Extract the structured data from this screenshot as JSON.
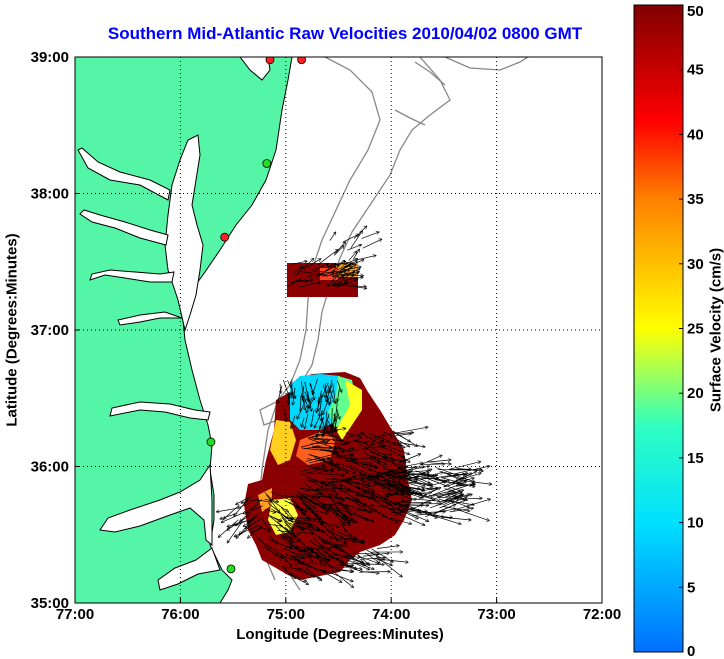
{
  "title": "Southern Mid-Atlantic Raw Velocities 2010/04/02 0800 GMT",
  "xlabel": "Longitude (Degrees:Minutes)",
  "ylabel": "Latitude (Degrees:Minutes)",
  "map": {
    "lon_range": [
      -77,
      -72
    ],
    "lat_range": [
      35,
      39
    ],
    "x_ticks": [
      {
        "lon": -77,
        "label": "77:00"
      },
      {
        "lon": -76,
        "label": "76:00"
      },
      {
        "lon": -75,
        "label": "75:00"
      },
      {
        "lon": -74,
        "label": "74:00"
      },
      {
        "lon": -73,
        "label": "73:00"
      },
      {
        "lon": -72,
        "label": "72:00"
      }
    ],
    "y_ticks": [
      {
        "lat": 35,
        "label": "35:00"
      },
      {
        "lat": 36,
        "label": "36:00"
      },
      {
        "lat": 37,
        "label": "37:00"
      },
      {
        "lat": 38,
        "label": "38:00"
      },
      {
        "lat": 39,
        "label": "39:00"
      }
    ],
    "grid": "dotted",
    "land_color": "#55f5a8",
    "stations": [
      {
        "lon": -75.15,
        "lat": 38.98,
        "color": "#ff2020"
      },
      {
        "lon": -74.85,
        "lat": 38.98,
        "color": "#ff2020"
      },
      {
        "lon": -75.18,
        "lat": 38.22,
        "color": "#22dd22"
      },
      {
        "lon": -75.58,
        "lat": 37.68,
        "color": "#ff2020"
      },
      {
        "lon": -75.71,
        "lat": 36.18,
        "color": "#22dd22"
      },
      {
        "lon": -75.52,
        "lat": 35.25,
        "color": "#22dd22"
      }
    ]
  },
  "colorbar": {
    "label": "Surface Velocity (cm/s)",
    "min": 0,
    "max": 50,
    "tick_values": [
      0,
      5,
      10,
      15,
      20,
      25,
      30,
      35,
      40,
      45,
      50
    ],
    "tick_labels": [
      "0",
      "5",
      "10",
      "15",
      "20",
      "25",
      "30",
      "35",
      "40",
      "45",
      "50"
    ]
  }
}
